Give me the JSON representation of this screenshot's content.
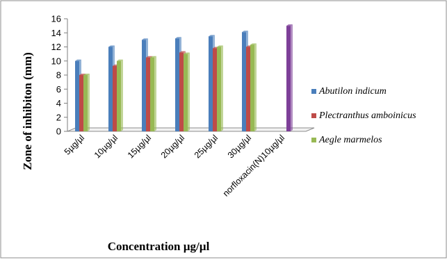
{
  "chart_data": {
    "type": "bar",
    "categories": [
      "5µg/µl",
      "10µg/µl",
      "15µg/µl",
      "20µg/µl",
      "25µg/µl",
      "30µg/µl",
      "norfloxacin(N)10µg/µl"
    ],
    "series": [
      {
        "name": "Abutilon indicum",
        "values": [
          10,
          12,
          13,
          13.2,
          13.5,
          14.1,
          null
        ],
        "color": "#4a7ebb"
      },
      {
        "name": "Plectranthus amboinicus",
        "values": [
          8,
          9.3,
          10.5,
          11.2,
          11.8,
          12,
          null
        ],
        "color": "#be4b48"
      },
      {
        "name": "Aegle marmelos",
        "values": [
          8,
          10,
          10.5,
          11,
          12,
          12.3,
          null
        ],
        "color": "#98b954"
      },
      {
        "name": "",
        "values": [
          null,
          null,
          null,
          null,
          null,
          null,
          15
        ],
        "color": "#7d3f98"
      }
    ],
    "title": "",
    "xlabel": "Concentration µg/µl",
    "ylabel": "Zone of inhibiton (mm)",
    "ylim": [
      0,
      16
    ],
    "yticks": [
      0,
      2,
      4,
      6,
      8,
      10,
      12,
      14,
      16
    ],
    "grid": false,
    "legend": "right"
  }
}
